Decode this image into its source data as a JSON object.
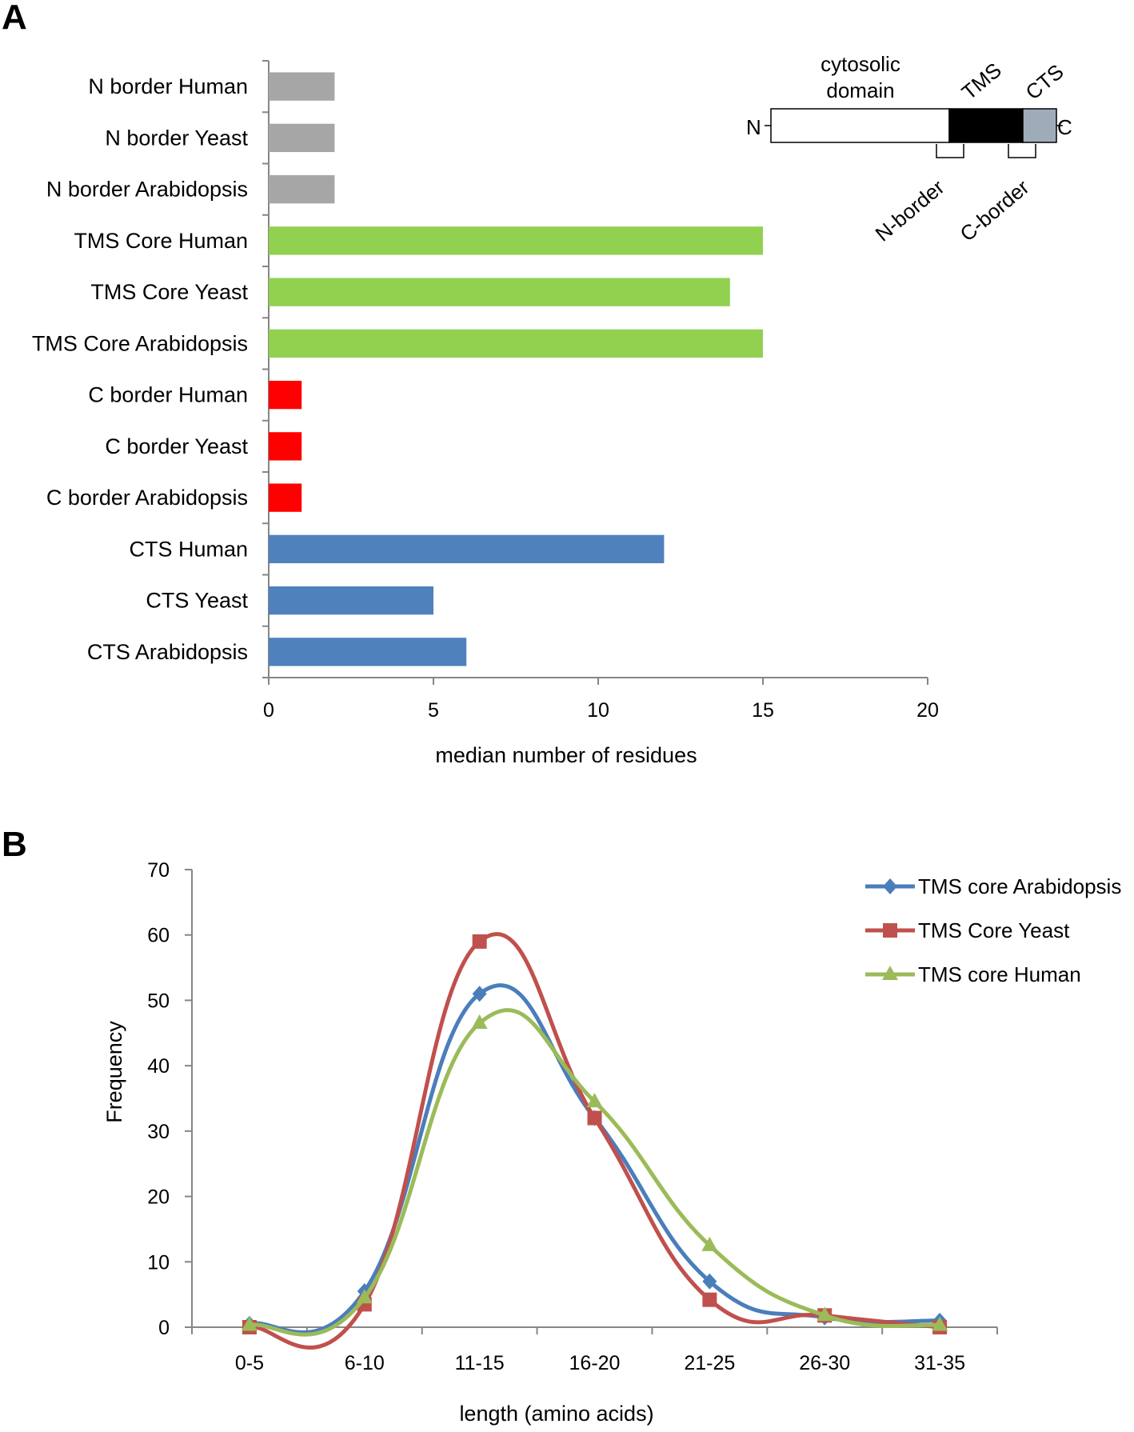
{
  "panel_a_letter": "A",
  "panel_b_letter": "B",
  "diagram": {
    "cytosolic": "cytosolic",
    "domain": "domain",
    "tms": "TMS",
    "cts": "CTS",
    "n": "N",
    "c": "C",
    "n_border": "N-border",
    "c_border": "C-border",
    "colors": {
      "cytosolic": "#ffffff",
      "tms": "#000000",
      "cts": "#9eacba"
    }
  },
  "chart_data": [
    {
      "type": "bar",
      "orientation": "horizontal",
      "categories": [
        "N border Human",
        "N border Yeast",
        "N border Arabidopsis",
        "TMS Core Human",
        "TMS Core Yeast",
        "TMS Core Arabidopsis",
        "C border Human",
        "C border Yeast",
        "C border Arabidopsis",
        "CTS Human",
        "CTS Yeast",
        "CTS Arabidopsis"
      ],
      "values": [
        2,
        2,
        2,
        15,
        14,
        15,
        1,
        1,
        1,
        12,
        5,
        6
      ],
      "colors": [
        "#a6a6a6",
        "#a6a6a6",
        "#a6a6a6",
        "#92d050",
        "#92d050",
        "#92d050",
        "#ff0000",
        "#ff0000",
        "#ff0000",
        "#4f81bd",
        "#4f81bd",
        "#4f81bd"
      ],
      "xlabel": "median number of residues",
      "ylabel": "",
      "xlim": [
        0,
        20
      ],
      "xticks": [
        0,
        5,
        10,
        15,
        20
      ],
      "grid": false
    },
    {
      "type": "line",
      "categories": [
        "0-5",
        "6-10",
        "11-15",
        "16-20",
        "21-25",
        "26-30",
        "31-35"
      ],
      "series": [
        {
          "name": "TMS core Arabidopsis",
          "color": "#4a7ebb",
          "marker": "diamond",
          "values": [
            0.5,
            5.5,
            51,
            32,
            7,
            1.5,
            1
          ]
        },
        {
          "name": "TMS Core Yeast",
          "color": "#c0504d",
          "marker": "square",
          "values": [
            0,
            3.5,
            59,
            32,
            4.2,
            1.8,
            0
          ]
        },
        {
          "name": "TMS core Human",
          "color": "#9bbb59",
          "marker": "triangle",
          "values": [
            0.3,
            4.5,
            46.5,
            34.5,
            12.5,
            1.8,
            0.3
          ]
        }
      ],
      "xlabel": "length (amino acids)",
      "ylabel": "Frequency",
      "ylim": [
        0,
        70
      ],
      "yticks": [
        0,
        10,
        20,
        30,
        40,
        50,
        60,
        70
      ],
      "legend": "top-right",
      "smooth": true,
      "grid": false
    }
  ]
}
